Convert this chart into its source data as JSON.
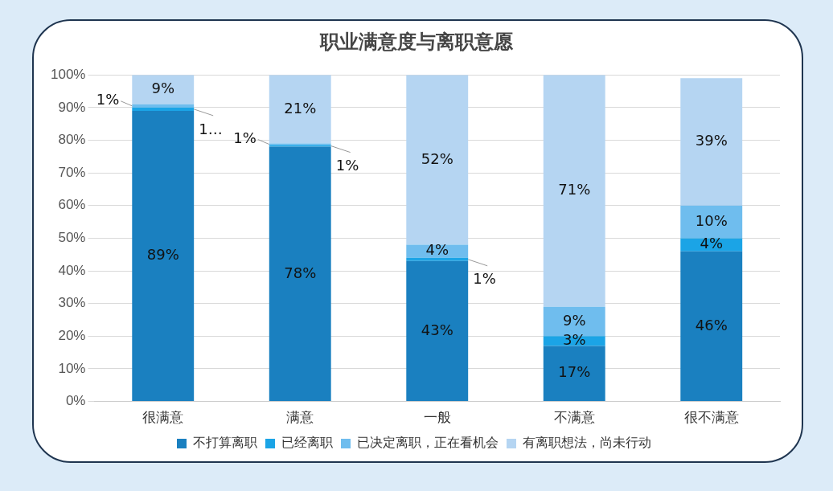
{
  "chart_data": {
    "type": "bar",
    "title": "职业满意度与离职意愿",
    "stacked": true,
    "categories": [
      "很满意",
      "满意",
      "一般",
      "不满意",
      "很不满意"
    ],
    "series": [
      {
        "name": "不打算离职",
        "color": "#1a80c0",
        "values": [
          89,
          78,
          43,
          17,
          46
        ],
        "value_labels": [
          "89%",
          "78%",
          "43%",
          "17%",
          "46%"
        ]
      },
      {
        "name": "已经离职",
        "color": "#1ba4e6",
        "values": [
          1,
          0.5,
          1,
          3,
          4
        ],
        "value_labels": [
          "1…",
          "1%",
          "1%",
          "3%",
          "4%"
        ]
      },
      {
        "name": "已决定离职，正在看机会",
        "color": "#6fbdee",
        "values": [
          1,
          0.5,
          4,
          9,
          10
        ],
        "value_labels": [
          "1%",
          "1%",
          "4%",
          "9%",
          "10%"
        ]
      },
      {
        "name": "有离职想法，尚未行动",
        "color": "#b5d5f2",
        "values": [
          9,
          21,
          52,
          71,
          39
        ],
        "value_labels": [
          "9%",
          "21%",
          "52%",
          "71%",
          "39%"
        ]
      }
    ],
    "ylim": [
      0,
      100
    ],
    "yticks": [
      {
        "value": 0,
        "label": "0%"
      },
      {
        "value": 10,
        "label": "10%"
      },
      {
        "value": 20,
        "label": "20%"
      },
      {
        "value": 30,
        "label": "30%"
      },
      {
        "value": 40,
        "label": "40%"
      },
      {
        "value": 50,
        "label": "50%"
      },
      {
        "value": 60,
        "label": "60%"
      },
      {
        "value": 70,
        "label": "70%"
      },
      {
        "value": 80,
        "label": "80%"
      },
      {
        "value": 90,
        "label": "90%"
      },
      {
        "value": 100,
        "label": "100%"
      }
    ],
    "grid": "y",
    "legend": "bottom"
  }
}
